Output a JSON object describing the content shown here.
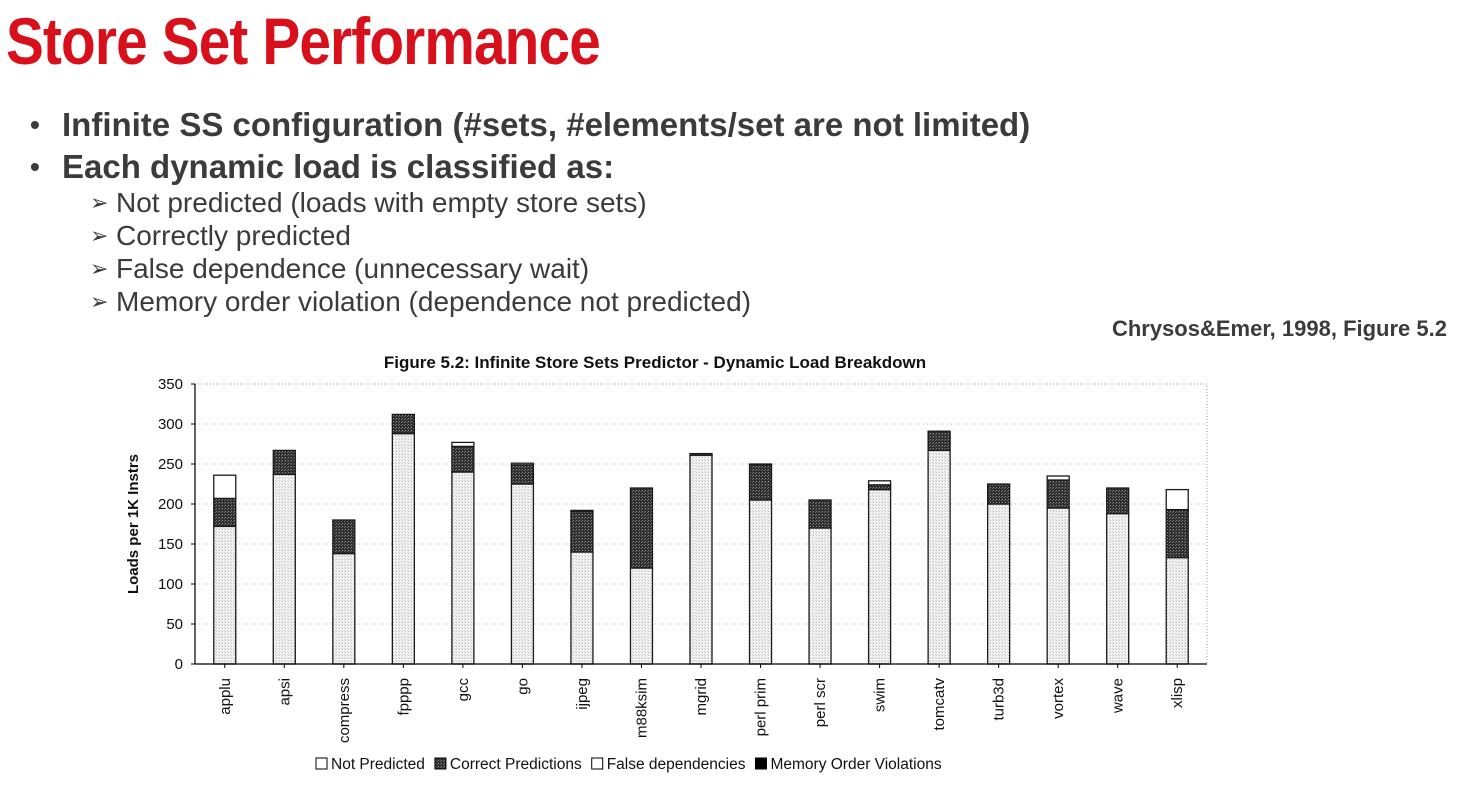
{
  "slide": {
    "title": "Store Set Performance",
    "bullets": [
      "Infinite SS configuration (#sets, #elements/set are not limited)",
      "Each dynamic load is classified as:"
    ],
    "sub_bullets": [
      "Not predicted (loads with empty store sets)",
      "Correctly predicted",
      "False dependence (unnecessary wait)",
      "Memory order violation (dependence not predicted)"
    ],
    "bullet_glyph": "•",
    "sub_bullet_glyph": "➢",
    "citation": "Chrysos&Emer, 1998, Figure 5.2",
    "colors": {
      "title": "#d7101b",
      "text": "#3b3b3b"
    }
  },
  "chart_data": {
    "type": "bar",
    "stacked": true,
    "title": "Figure 5.2: Infinite Store Sets Predictor - Dynamic Load Breakdown",
    "ylabel": "Loads per 1K Instrs",
    "xlabel": "",
    "ylim": [
      0,
      350
    ],
    "yticks": [
      0,
      50,
      100,
      150,
      200,
      250,
      300,
      350
    ],
    "grid": true,
    "legend_position": "bottom",
    "categories": [
      "applu",
      "apsi",
      "compress",
      "fpppp",
      "gcc",
      "go",
      "ijpeg",
      "m88ksim",
      "mgrid",
      "perl prim",
      "perl scr",
      "swim",
      "tomcatv",
      "turb3d",
      "vortex",
      "wave",
      "xlisp"
    ],
    "series": [
      {
        "name": "Memory Order Violations",
        "pattern": "black",
        "values": [
          0,
          0,
          0,
          0,
          0,
          0,
          0,
          0,
          0,
          0,
          0,
          0,
          0,
          0,
          0,
          0,
          0
        ]
      },
      {
        "name": "Correct Predictions",
        "pattern": "light",
        "values": [
          172,
          237,
          138,
          288,
          240,
          225,
          140,
          120,
          261,
          205,
          170,
          218,
          267,
          200,
          195,
          188,
          133
        ]
      },
      {
        "name": "Correct Predictions",
        "pattern": "dark",
        "values": [
          35,
          30,
          42,
          24,
          32,
          24,
          51,
          100,
          2,
          44,
          35,
          6,
          24,
          25,
          35,
          32,
          60
        ]
      },
      {
        "name": "False dependencies",
        "pattern": "white",
        "values": [
          29,
          0,
          0,
          0,
          5,
          2,
          1,
          0,
          0,
          1,
          0,
          5,
          0,
          0,
          5,
          0,
          25
        ]
      }
    ],
    "legend": [
      "Not Predicted",
      "Correct Predictions",
      "False dependencies",
      "Memory Order Violations"
    ],
    "legend_markers": [
      "white",
      "dark",
      "white",
      "black"
    ],
    "colors": {
      "dark": "#2e2e2e",
      "light": "#e9e9e9",
      "white": "#ffffff",
      "black": "#000000"
    }
  }
}
